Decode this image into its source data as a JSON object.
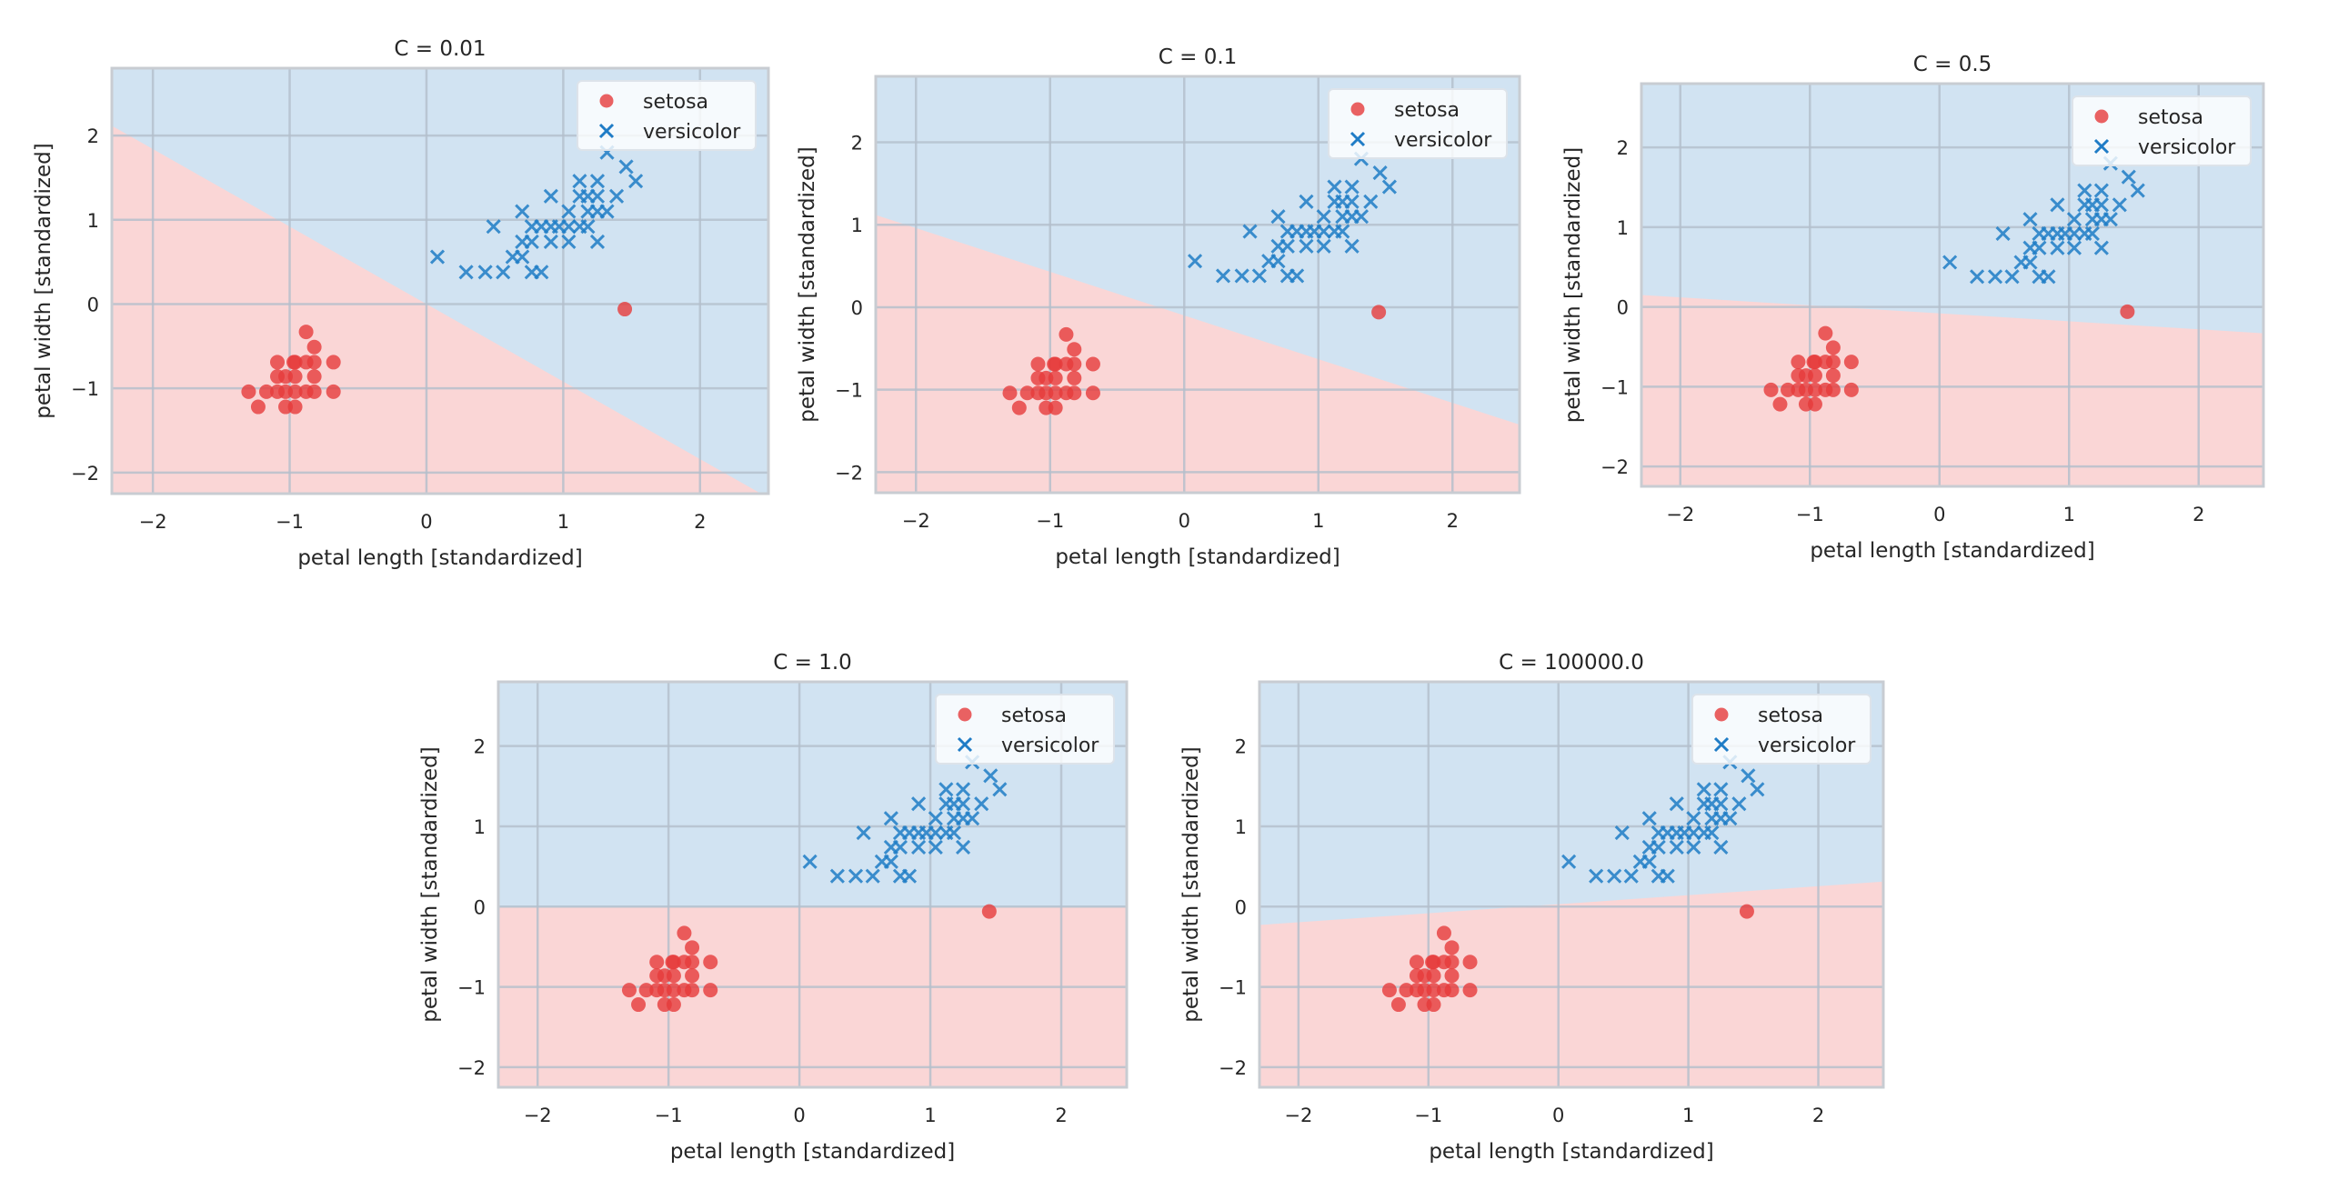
{
  "colors": {
    "setosa": "#e63b3b",
    "versicolor": "#1f7cc6",
    "region_setosa": "#fad6d6",
    "region_versicolor": "#d1e3f2",
    "grid": "#b4bfcc",
    "frame": "#c8ccd2"
  },
  "chart_data": [
    {
      "type": "scatter",
      "title": "C = 0.01",
      "xlabel": "petal length [standardized]",
      "ylabel": "petal width [standardized]",
      "xlim": [
        -2.3,
        2.5
      ],
      "ylim": [
        -2.25,
        2.8
      ],
      "xticks": [
        -2,
        -1,
        0,
        1,
        2
      ],
      "yticks": [
        -2,
        -1,
        0,
        1,
        2
      ],
      "grid": true,
      "legend": "top-right",
      "decision_boundary": {
        "slope": -0.92,
        "intercept": 0.0
      }
    },
    {
      "type": "scatter",
      "title": "C = 0.1",
      "xlabel": "petal length [standardized]",
      "ylabel": "petal width [standardized]",
      "xlim": [
        -2.3,
        2.5
      ],
      "ylim": [
        -2.25,
        2.8
      ],
      "xticks": [
        -2,
        -1,
        0,
        1,
        2
      ],
      "yticks": [
        -2,
        -1,
        0,
        1,
        2
      ],
      "grid": true,
      "legend": "top-right",
      "decision_boundary": {
        "slope": -0.53,
        "intercept": -0.1
      }
    },
    {
      "type": "scatter",
      "title": "C = 0.5",
      "xlabel": "petal length [standardized]",
      "ylabel": "petal width [standardized]",
      "xlim": [
        -2.3,
        2.5
      ],
      "ylim": [
        -2.25,
        2.8
      ],
      "xticks": [
        -2,
        -1,
        0,
        1,
        2
      ],
      "yticks": [
        -2,
        -1,
        0,
        1,
        2
      ],
      "grid": true,
      "legend": "top-right",
      "decision_boundary": {
        "slope": -0.1,
        "intercept": -0.08
      }
    },
    {
      "type": "scatter",
      "title": "C = 1.0",
      "xlabel": "petal length [standardized]",
      "ylabel": "petal width [standardized]",
      "xlim": [
        -2.3,
        2.5
      ],
      "ylim": [
        -2.25,
        2.8
      ],
      "xticks": [
        -2,
        -1,
        0,
        1,
        2
      ],
      "yticks": [
        -2,
        -1,
        0,
        1,
        2
      ],
      "grid": true,
      "legend": "top-right",
      "decision_boundary": {
        "slope": 0.0,
        "intercept": -0.01
      }
    },
    {
      "type": "scatter",
      "title": "C = 100000.0",
      "xlabel": "petal length [standardized]",
      "ylabel": "petal width [standardized]",
      "xlim": [
        -2.3,
        2.5
      ],
      "ylim": [
        -2.25,
        2.8
      ],
      "xticks": [
        -2,
        -1,
        0,
        1,
        2
      ],
      "yticks": [
        -2,
        -1,
        0,
        1,
        2
      ],
      "grid": true,
      "legend": "top-right",
      "decision_boundary": {
        "slope": 0.1125,
        "intercept": 0.03
      }
    }
  ],
  "series": [
    {
      "name": "setosa",
      "marker": "circle",
      "points": [
        [
          -0.88,
          -0.33
        ],
        [
          -0.82,
          -0.51
        ],
        [
          -1.09,
          -0.69
        ],
        [
          -0.97,
          -0.69
        ],
        [
          -0.96,
          -0.69
        ],
        [
          -0.88,
          -0.69
        ],
        [
          -0.82,
          -0.69
        ],
        [
          -0.68,
          -0.69
        ],
        [
          -1.09,
          -0.86
        ],
        [
          -1.03,
          -0.86
        ],
        [
          -0.96,
          -0.86
        ],
        [
          -0.82,
          -0.86
        ],
        [
          -1.3,
          -1.04
        ],
        [
          -1.17,
          -1.04
        ],
        [
          -1.09,
          -1.04
        ],
        [
          -1.03,
          -1.04
        ],
        [
          -0.96,
          -1.04
        ],
        [
          -0.88,
          -1.04
        ],
        [
          -0.82,
          -1.04
        ],
        [
          -0.68,
          -1.04
        ],
        [
          -1.23,
          -1.22
        ],
        [
          -1.03,
          -1.22
        ],
        [
          -0.96,
          -1.22
        ],
        [
          1.45,
          -0.06
        ]
      ]
    },
    {
      "name": "versicolor",
      "marker": "x",
      "points": [
        [
          1.32,
          1.8
        ],
        [
          1.46,
          1.63
        ],
        [
          1.53,
          1.46
        ],
        [
          1.12,
          1.46
        ],
        [
          1.25,
          1.46
        ],
        [
          0.91,
          1.28
        ],
        [
          1.12,
          1.28
        ],
        [
          1.18,
          1.28
        ],
        [
          1.25,
          1.28
        ],
        [
          1.39,
          1.28
        ],
        [
          0.7,
          1.1
        ],
        [
          1.04,
          1.1
        ],
        [
          1.18,
          1.1
        ],
        [
          1.25,
          1.1
        ],
        [
          1.32,
          1.1
        ],
        [
          0.49,
          0.92
        ],
        [
          0.77,
          0.92
        ],
        [
          0.84,
          0.92
        ],
        [
          0.91,
          0.92
        ],
        [
          0.97,
          0.92
        ],
        [
          1.04,
          0.92
        ],
        [
          1.12,
          0.92
        ],
        [
          1.18,
          0.92
        ],
        [
          0.7,
          0.74
        ],
        [
          0.77,
          0.74
        ],
        [
          0.91,
          0.74
        ],
        [
          1.04,
          0.74
        ],
        [
          1.25,
          0.74
        ],
        [
          0.08,
          0.56
        ],
        [
          0.63,
          0.56
        ],
        [
          0.7,
          0.56
        ],
        [
          0.29,
          0.38
        ],
        [
          0.43,
          0.38
        ],
        [
          0.56,
          0.38
        ],
        [
          0.77,
          0.38
        ],
        [
          0.84,
          0.38
        ]
      ]
    }
  ]
}
